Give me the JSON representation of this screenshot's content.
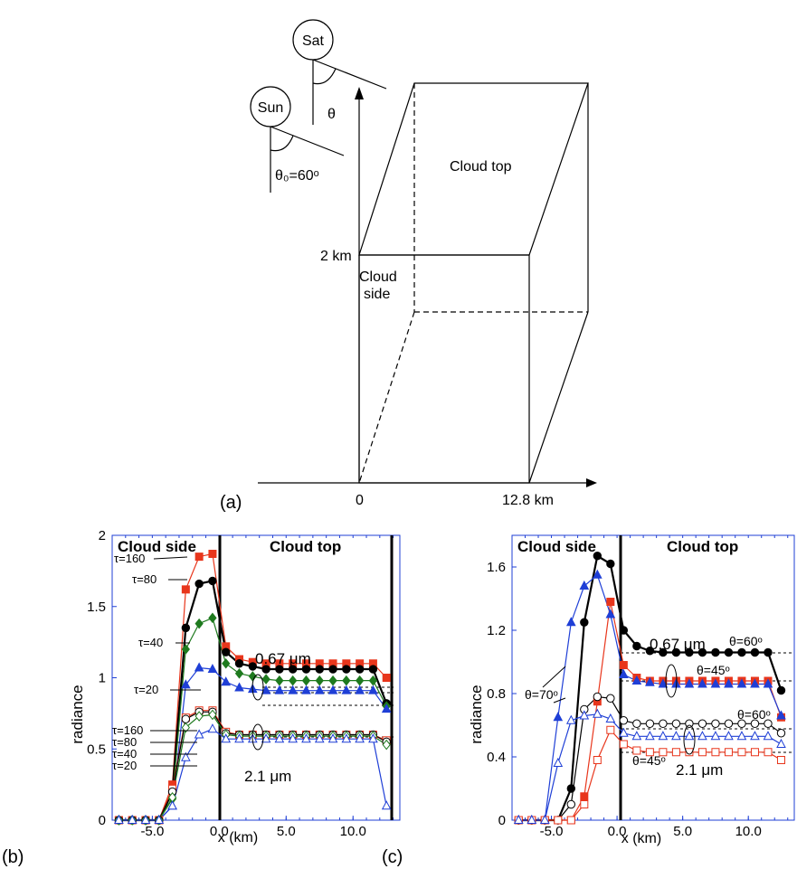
{
  "panel_a": {
    "label": "(a)",
    "sat": "Sat",
    "sun": "Sun",
    "theta": "θ",
    "theta0": "θ₀=60ᵒ",
    "cloud_top": "Cloud top",
    "cloud_side_1": "Cloud",
    "cloud_side_2": "side",
    "height": "2 km",
    "x0": "0",
    "x_end": "12.8 km"
  },
  "chart_data": [
    {
      "type": "line",
      "label": "(b)",
      "xlabel": "x (km)",
      "ylabel": "radiance",
      "xlim": [
        -8,
        13.5
      ],
      "ylim": [
        0,
        2
      ],
      "xticks": [
        "-5.0",
        "0.0",
        "5.0",
        "10.0"
      ],
      "yticks": [
        "0",
        "0.5",
        "1",
        "1.5",
        "2"
      ],
      "region_labels": [
        "Cloud side",
        "Cloud top"
      ],
      "annotations": [
        "0.67 μm",
        "2.1 μm"
      ],
      "legend_labels": [
        "τ=160",
        "τ=80",
        "τ=40",
        "τ=20",
        "τ=160",
        "τ=80",
        "τ=40",
        "τ=20"
      ],
      "series": [
        {
          "color": "#e8361c",
          "marker": "square",
          "filled": true,
          "x": [
            -7.5,
            -6.5,
            -5.5,
            -4.5,
            -3.5,
            -2.5,
            -1.5,
            -0.5,
            0.5,
            1.5,
            2.5,
            3.5,
            4.5,
            5.5,
            6.5,
            7.5,
            8.5,
            9.5,
            10.5,
            11.5,
            12.5
          ],
          "y": [
            0,
            0,
            0,
            0,
            0.25,
            1.62,
            1.85,
            1.87,
            1.22,
            1.13,
            1.11,
            1.1,
            1.1,
            1.1,
            1.1,
            1.1,
            1.1,
            1.1,
            1.1,
            1.1,
            1.0
          ]
        },
        {
          "color": "#000000",
          "marker": "circle",
          "filled": true,
          "x": [
            -7.5,
            -6.5,
            -5.5,
            -4.5,
            -3.5,
            -2.5,
            -1.5,
            -0.5,
            0.5,
            1.5,
            2.5,
            3.5,
            4.5,
            5.5,
            6.5,
            7.5,
            8.5,
            9.5,
            10.5,
            11.5,
            12.5
          ],
          "y": [
            0,
            0,
            0,
            0,
            0.2,
            1.35,
            1.66,
            1.68,
            1.18,
            1.1,
            1.08,
            1.06,
            1.06,
            1.06,
            1.06,
            1.06,
            1.06,
            1.06,
            1.06,
            1.06,
            0.82
          ]
        },
        {
          "color": "#1e7a1e",
          "marker": "diamond",
          "filled": true,
          "x": [
            -7.5,
            -6.5,
            -5.5,
            -4.5,
            -3.5,
            -2.5,
            -1.5,
            -0.5,
            0.5,
            1.5,
            2.5,
            3.5,
            4.5,
            5.5,
            6.5,
            7.5,
            8.5,
            9.5,
            10.5,
            11.5,
            12.5
          ],
          "y": [
            0,
            0,
            0,
            0,
            0.15,
            1.2,
            1.38,
            1.42,
            1.1,
            1.03,
            1.01,
            0.99,
            0.98,
            0.98,
            0.98,
            0.98,
            0.98,
            0.98,
            0.98,
            0.98,
            0.8
          ]
        },
        {
          "color": "#1f3fd6",
          "marker": "triangle",
          "filled": true,
          "x": [
            -7.5,
            -6.5,
            -5.5,
            -4.5,
            -3.5,
            -2.5,
            -1.5,
            -0.5,
            0.5,
            1.5,
            2.5,
            3.5,
            4.5,
            5.5,
            6.5,
            7.5,
            8.5,
            9.5,
            10.5,
            11.5,
            12.5
          ],
          "y": [
            0,
            0,
            0,
            0,
            0.1,
            0.95,
            1.07,
            1.06,
            0.97,
            0.93,
            0.92,
            0.91,
            0.91,
            0.91,
            0.91,
            0.91,
            0.91,
            0.91,
            0.91,
            0.91,
            0.78
          ]
        },
        {
          "color": "#e8361c",
          "marker": "square",
          "filled": false,
          "x": [
            -7.5,
            -6.5,
            -5.5,
            -4.5,
            -3.5,
            -2.5,
            -1.5,
            -0.5,
            0.5,
            1.5,
            2.5,
            3.5,
            4.5,
            5.5,
            6.5,
            7.5,
            8.5,
            9.5,
            10.5,
            11.5,
            12.5
          ],
          "y": [
            0,
            0,
            0,
            0,
            0.22,
            0.72,
            0.77,
            0.77,
            0.62,
            0.6,
            0.6,
            0.6,
            0.6,
            0.6,
            0.6,
            0.6,
            0.6,
            0.6,
            0.6,
            0.6,
            0.56
          ]
        },
        {
          "color": "#000000",
          "marker": "circle",
          "filled": false,
          "x": [
            -7.5,
            -6.5,
            -5.5,
            -4.5,
            -3.5,
            -2.5,
            -1.5,
            -0.5,
            0.5,
            1.5,
            2.5,
            3.5,
            4.5,
            5.5,
            6.5,
            7.5,
            8.5,
            9.5,
            10.5,
            11.5,
            12.5
          ],
          "y": [
            0,
            0,
            0,
            0,
            0.2,
            0.71,
            0.76,
            0.76,
            0.61,
            0.6,
            0.6,
            0.6,
            0.6,
            0.6,
            0.6,
            0.6,
            0.6,
            0.6,
            0.6,
            0.6,
            0.55
          ]
        },
        {
          "color": "#1e7a1e",
          "marker": "diamond",
          "filled": false,
          "x": [
            -7.5,
            -6.5,
            -5.5,
            -4.5,
            -3.5,
            -2.5,
            -1.5,
            -0.5,
            0.5,
            1.5,
            2.5,
            3.5,
            4.5,
            5.5,
            6.5,
            7.5,
            8.5,
            9.5,
            10.5,
            11.5,
            12.5
          ],
          "y": [
            0,
            0,
            0,
            0,
            0.16,
            0.65,
            0.73,
            0.74,
            0.6,
            0.59,
            0.59,
            0.59,
            0.59,
            0.59,
            0.59,
            0.59,
            0.59,
            0.59,
            0.59,
            0.59,
            0.53
          ]
        },
        {
          "color": "#1f3fd6",
          "marker": "triangle",
          "filled": false,
          "x": [
            -7.5,
            -6.5,
            -5.5,
            -4.5,
            -3.5,
            -2.5,
            -1.5,
            -0.5,
            0.5,
            1.5,
            2.5,
            3.5,
            4.5,
            5.5,
            6.5,
            7.5,
            8.5,
            9.5,
            10.5,
            11.5,
            12.5
          ],
          "y": [
            0,
            0,
            0,
            0,
            0.1,
            0.44,
            0.6,
            0.64,
            0.57,
            0.57,
            0.57,
            0.57,
            0.57,
            0.57,
            0.57,
            0.57,
            0.57,
            0.57,
            0.57,
            0.57,
            0.1
          ]
        }
      ]
    },
    {
      "type": "line",
      "label": "(c)",
      "xlabel": "x (km)",
      "ylabel": "radiance",
      "xlim": [
        -8,
        13.5
      ],
      "ylim": [
        0,
        1.8
      ],
      "xticks": [
        "-5.0",
        "0.0",
        "5.0",
        "10.0"
      ],
      "yticks": [
        "0",
        "0.4",
        "0.8",
        "1.2",
        "1.6"
      ],
      "region_labels": [
        "Cloud side",
        "Cloud top"
      ],
      "annotations": [
        "0.67 μm",
        "2.1 μm",
        "θ=60ᵒ",
        "θ=45ᵒ",
        "θ=70ᵒ",
        "θ=60ᵒ",
        "θ=45ᵒ"
      ],
      "series": [
        {
          "color": "#000000",
          "marker": "circle",
          "filled": true,
          "x": [
            -7.5,
            -6.5,
            -5.5,
            -4.5,
            -3.5,
            -2.5,
            -1.5,
            -0.5,
            0.5,
            1.5,
            2.5,
            3.5,
            4.5,
            5.5,
            6.5,
            7.5,
            8.5,
            9.5,
            10.5,
            11.5,
            12.5
          ],
          "y": [
            0,
            0,
            0,
            0,
            0.2,
            1.25,
            1.67,
            1.62,
            1.2,
            1.1,
            1.07,
            1.06,
            1.06,
            1.06,
            1.06,
            1.06,
            1.06,
            1.06,
            1.06,
            1.06,
            0.82
          ]
        },
        {
          "color": "#e8361c",
          "marker": "square",
          "filled": true,
          "x": [
            -7.5,
            -6.5,
            -5.5,
            -4.5,
            -3.5,
            -2.5,
            -1.5,
            -0.5,
            0.5,
            1.5,
            2.5,
            3.5,
            4.5,
            5.5,
            6.5,
            7.5,
            8.5,
            9.5,
            10.5,
            11.5,
            12.5
          ],
          "y": [
            0,
            0,
            0,
            0,
            0,
            0.15,
            0.75,
            1.38,
            0.98,
            0.9,
            0.88,
            0.88,
            0.88,
            0.88,
            0.88,
            0.88,
            0.88,
            0.88,
            0.88,
            0.88,
            0.65
          ]
        },
        {
          "color": "#1f3fd6",
          "marker": "triangle",
          "filled": true,
          "x": [
            -7.5,
            -6.5,
            -5.5,
            -4.5,
            -3.5,
            -2.5,
            -1.5,
            -0.5,
            0.5,
            1.5,
            2.5,
            3.5,
            4.5,
            5.5,
            6.5,
            7.5,
            8.5,
            9.5,
            10.5,
            11.5,
            12.5
          ],
          "y": [
            0,
            0,
            0,
            0.65,
            1.25,
            1.48,
            1.55,
            1.3,
            0.92,
            0.88,
            0.87,
            0.86,
            0.86,
            0.86,
            0.86,
            0.86,
            0.86,
            0.86,
            0.86,
            0.86,
            0.66
          ]
        },
        {
          "color": "#000000",
          "marker": "circle",
          "filled": false,
          "x": [
            -7.5,
            -6.5,
            -5.5,
            -4.5,
            -3.5,
            -2.5,
            -1.5,
            -0.5,
            0.5,
            1.5,
            2.5,
            3.5,
            4.5,
            5.5,
            6.5,
            7.5,
            8.5,
            9.5,
            10.5,
            11.5,
            12.5
          ],
          "y": [
            0,
            0,
            0,
            0,
            0.1,
            0.7,
            0.78,
            0.77,
            0.63,
            0.61,
            0.61,
            0.61,
            0.61,
            0.61,
            0.61,
            0.61,
            0.61,
            0.61,
            0.61,
            0.61,
            0.55
          ]
        },
        {
          "color": "#e8361c",
          "marker": "square",
          "filled": false,
          "x": [
            -7.5,
            -6.5,
            -5.5,
            -4.5,
            -3.5,
            -2.5,
            -1.5,
            -0.5,
            0.5,
            1.5,
            2.5,
            3.5,
            4.5,
            5.5,
            6.5,
            7.5,
            8.5,
            9.5,
            10.5,
            11.5,
            12.5
          ],
          "y": [
            0,
            0,
            0,
            0,
            0,
            0.1,
            0.38,
            0.57,
            0.48,
            0.44,
            0.43,
            0.43,
            0.43,
            0.43,
            0.43,
            0.43,
            0.43,
            0.43,
            0.43,
            0.43,
            0.38
          ]
        },
        {
          "color": "#1f3fd6",
          "marker": "triangle",
          "filled": false,
          "x": [
            -7.5,
            -6.5,
            -5.5,
            -4.5,
            -3.5,
            -2.5,
            -1.5,
            -0.5,
            0.5,
            1.5,
            2.5,
            3.5,
            4.5,
            5.5,
            6.5,
            7.5,
            8.5,
            9.5,
            10.5,
            11.5,
            12.5
          ],
          "y": [
            0,
            0,
            0,
            0.36,
            0.63,
            0.66,
            0.67,
            0.64,
            0.55,
            0.53,
            0.53,
            0.53,
            0.53,
            0.53,
            0.53,
            0.53,
            0.53,
            0.53,
            0.53,
            0.53,
            0.48
          ]
        }
      ]
    }
  ]
}
